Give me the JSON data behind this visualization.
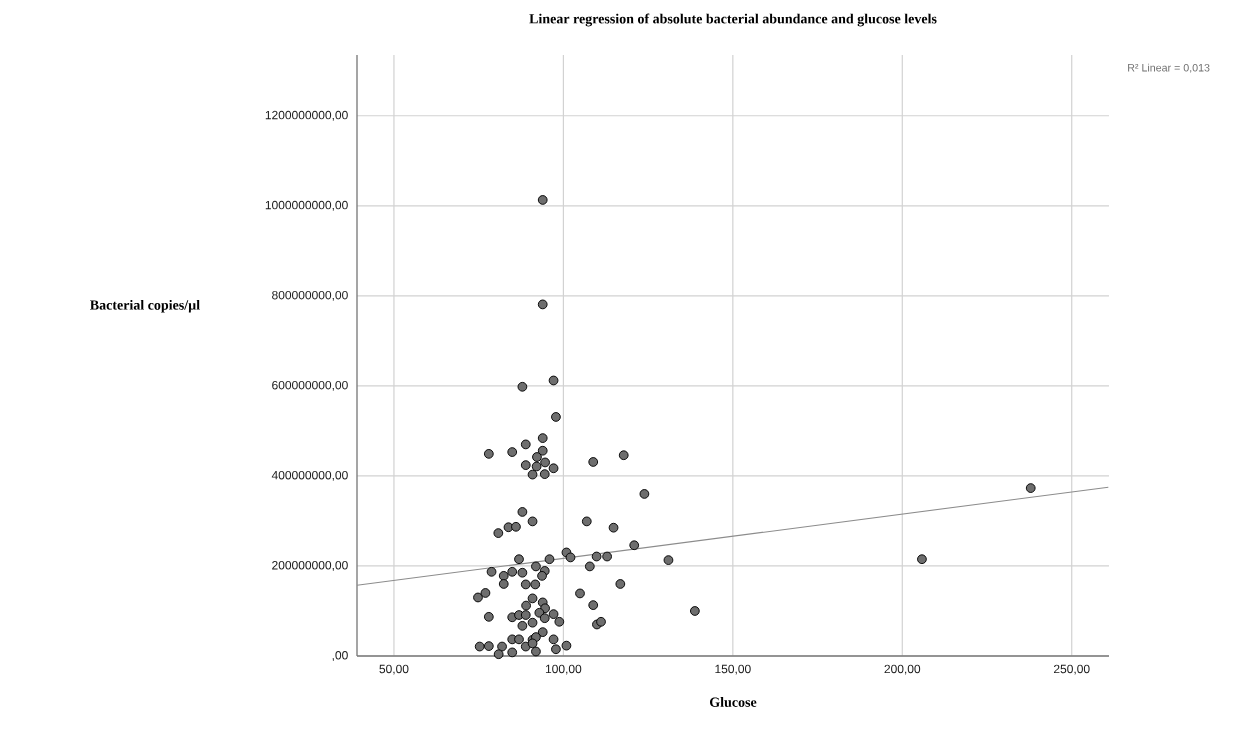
{
  "chart_data": {
    "type": "scatter",
    "title": "Linear regression of absolute bacterial abundance and glucose levels",
    "xlabel": "Glucose",
    "ylabel": "Bacterial copies/µl",
    "annotations": [
      "R² Linear = 0,013"
    ],
    "xlim": [
      39.1,
      261
    ],
    "ylim": [
      0,
      1335000000
    ],
    "xticks": [
      {
        "value": 50,
        "label": "50,00"
      },
      {
        "value": 100,
        "label": "100,00"
      },
      {
        "value": 150,
        "label": "150,00"
      },
      {
        "value": 200,
        "label": "200,00"
      },
      {
        "value": 250,
        "label": "250,00"
      }
    ],
    "yticks": [
      {
        "value": 0,
        "label": ",00"
      },
      {
        "value": 200000000,
        "label": "200000000,00"
      },
      {
        "value": 400000000,
        "label": "400000000,00"
      },
      {
        "value": 600000000,
        "label": "600000000,00"
      },
      {
        "value": 800000000,
        "label": "800000000,00"
      },
      {
        "value": 1000000000,
        "label": "1000000000,00"
      },
      {
        "value": 1200000000,
        "label": "1200000000,00"
      }
    ],
    "grid": true,
    "series": [
      {
        "marker": "circle",
        "color": "#6e6e6e",
        "x": [
          123.9,
          131.0,
          138.8,
          205.8,
          237.9,
          93.9,
          93.9,
          97.1,
          87.9,
          97.8,
          93.9,
          78.0,
          84.9,
          88.9,
          93.9,
          92.2,
          94.6,
          88.9,
          92.1,
          97.1,
          90.9,
          94.5,
          108.8,
          117.8,
          87.9,
          90.9,
          80.8,
          83.8,
          86.0,
          106.9,
          114.8,
          120.9,
          100.9,
          102.1,
          109.8,
          112.9,
          107.8,
          86.9,
          95.9,
          91.9,
          78.8,
          84.9,
          87.9,
          94.5,
          93.7,
          82.4,
          82.4,
          88.9,
          91.7,
          116.8,
          74.8,
          77.0,
          104.9,
          108.8,
          109.9,
          111.1,
          90.9,
          93.9,
          89.0,
          94.6,
          78.0,
          84.9,
          86.9,
          88.9,
          92.9,
          97.1,
          87.9,
          90.9,
          94.5,
          98.8,
          93.9,
          84.9,
          86.9,
          90.9,
          91.9,
          97.1,
          75.3,
          78.0,
          81.9,
          88.9,
          90.9,
          100.9,
          97.8,
          80.9,
          84.9,
          91.9
        ],
        "values": [
          360000000,
          213000000,
          100000000,
          215000000,
          373000000,
          1013000000,
          781000000,
          612000000,
          598000000,
          531000000,
          484000000,
          449000000,
          453000000,
          470000000,
          456000000,
          442000000,
          430000000,
          424000000,
          421000000,
          417000000,
          403000000,
          404000000,
          431000000,
          446000000,
          320000000,
          299000000,
          273000000,
          286000000,
          287000000,
          299000000,
          285000000,
          246000000,
          230000000,
          219000000,
          221000000,
          221000000,
          199000000,
          215000000,
          215000000,
          199000000,
          187000000,
          187000000,
          185000000,
          189000000,
          178000000,
          178000000,
          160000000,
          159000000,
          159000000,
          160000000,
          130000000,
          140000000,
          139000000,
          113000000,
          70000000,
          76000000,
          128000000,
          119000000,
          112000000,
          106000000,
          87000000,
          86000000,
          91000000,
          91000000,
          96000000,
          93000000,
          67000000,
          74000000,
          84000000,
          76000000,
          53000000,
          37000000,
          37000000,
          36000000,
          42000000,
          37000000,
          21000000,
          22000000,
          21000000,
          21000000,
          28000000,
          23000000,
          15000000,
          4000000,
          8000000,
          10000000
        ]
      },
      {
        "type": "line",
        "marker": "none",
        "line_style": "solid",
        "color": "#8c8c8c",
        "x": [
          39.1,
          260.8
        ],
        "values": [
          157000000,
          375000000
        ]
      }
    ]
  }
}
